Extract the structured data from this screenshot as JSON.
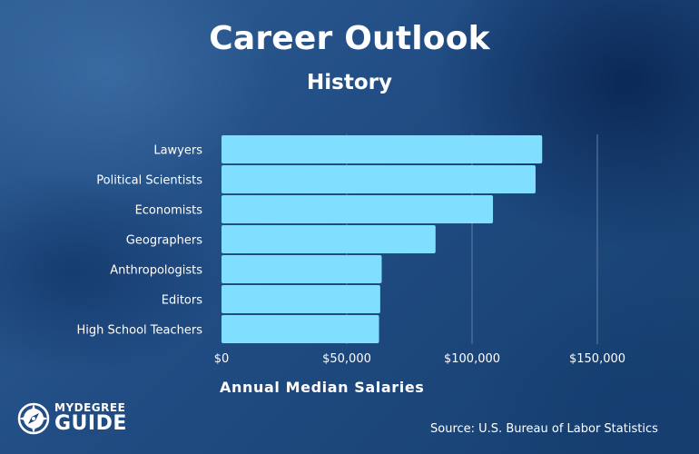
{
  "header": {
    "title": "Career Outlook",
    "subtitle": "History"
  },
  "footer": {
    "source": "Source: U.S. Bureau of Labor Statistics",
    "logo_top": "MYDEGREE",
    "logo_bottom": "GUIDE"
  },
  "colors": {
    "bar": "#80dfff",
    "background": "#1e4579",
    "grid": "#5f7fa6"
  },
  "chart_data": {
    "type": "bar",
    "orientation": "horizontal",
    "title": "Career Outlook",
    "subtitle": "History",
    "xlabel": "Annual Median Salaries",
    "ylabel": "",
    "categories": [
      "Lawyers",
      "Political Scientists",
      "Economists",
      "Geographers",
      "Anthropologists",
      "Editors",
      "High School Teachers"
    ],
    "values": [
      127990,
      125350,
      108350,
      85430,
      63940,
      63350,
      62870
    ],
    "xlim": [
      0,
      150000
    ],
    "ticks": [
      0,
      50000,
      100000,
      150000
    ],
    "tick_labels": [
      "$0",
      "$50,000",
      "$100,000",
      "$150,000"
    ],
    "grid": true
  }
}
